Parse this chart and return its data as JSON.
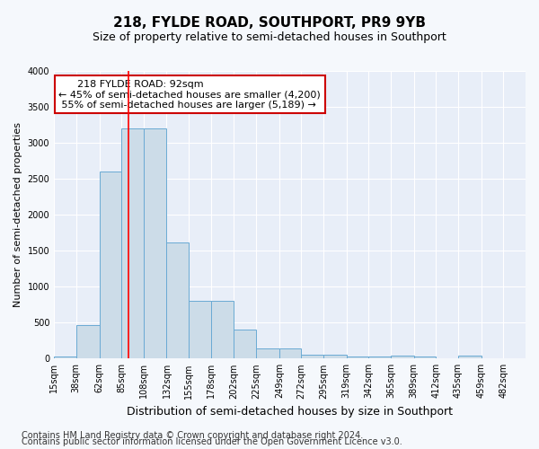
{
  "title": "218, FYLDE ROAD, SOUTHPORT, PR9 9YB",
  "subtitle": "Size of property relative to semi-detached houses in Southport",
  "xlabel": "Distribution of semi-detached houses by size in Southport",
  "ylabel": "Number of semi-detached properties",
  "footnote1": "Contains HM Land Registry data © Crown copyright and database right 2024.",
  "footnote2": "Contains public sector information licensed under the Open Government Licence v3.0.",
  "annotation_title": "218 FYLDE ROAD: 92sqm",
  "annotation_line1": "← 45% of semi-detached houses are smaller (4,200)",
  "annotation_line2": "55% of semi-detached houses are larger (5,189) →",
  "bar_edges": [
    15,
    38,
    62,
    85,
    108,
    132,
    155,
    178,
    202,
    225,
    249,
    272,
    295,
    319,
    342,
    365,
    389,
    412,
    435,
    459,
    482
  ],
  "bar_heights": [
    30,
    460,
    2600,
    3200,
    3200,
    1620,
    800,
    800,
    400,
    145,
    145,
    60,
    55,
    25,
    25,
    40,
    25,
    5,
    40,
    5,
    5
  ],
  "bar_color": "#ccdce8",
  "bar_edge_color": "#6aaad4",
  "red_line_x": 92,
  "ylim": [
    0,
    4000
  ],
  "yticks": [
    0,
    500,
    1000,
    1500,
    2000,
    2500,
    3000,
    3500,
    4000
  ],
  "annotation_box_color": "#ffffff",
  "annotation_box_edge": "#cc0000",
  "fig_bg_color": "#f5f8fc",
  "axes_bg_color": "#e8eef8",
  "grid_color": "#ffffff",
  "title_fontsize": 11,
  "subtitle_fontsize": 9,
  "ylabel_fontsize": 8,
  "xlabel_fontsize": 9,
  "tick_fontsize": 7,
  "annotation_fontsize": 8,
  "footnote_fontsize": 7
}
